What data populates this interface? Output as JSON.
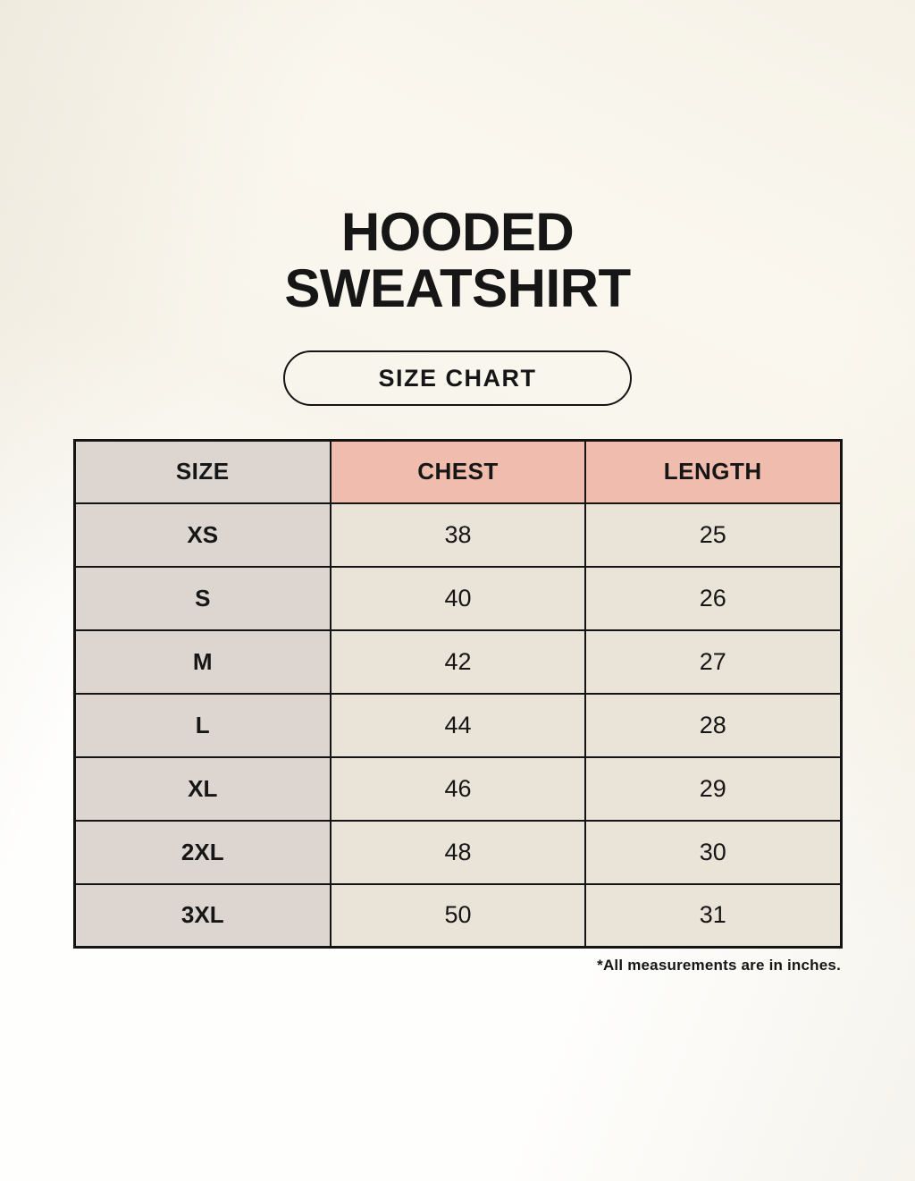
{
  "header": {
    "title_line1": "HOODED",
    "title_line2": "SWEATSHIRT",
    "badge_label": "SIZE CHART"
  },
  "table": {
    "headers": [
      "SIZE",
      "CHEST",
      "LENGTH"
    ],
    "rows": [
      [
        "XS",
        "38",
        "25"
      ],
      [
        "S",
        "40",
        "26"
      ],
      [
        "M",
        "42",
        "27"
      ],
      [
        "L",
        "44",
        "28"
      ],
      [
        "XL",
        "46",
        "29"
      ],
      [
        "2XL",
        "48",
        "30"
      ],
      [
        "3XL",
        "50",
        "31"
      ]
    ]
  },
  "footnote": "*All measurements are in inches.",
  "colors": {
    "background": "#faf7ef",
    "size_column_bg": "#ddd6d0",
    "accent_header_bg": "#efbcad",
    "data_cell_bg": "#eae3d8",
    "border": "#141414",
    "text": "#161616"
  },
  "chart_data": {
    "type": "table",
    "title": "HOODED SWEATSHIRT",
    "subtitle": "SIZE CHART",
    "columns": [
      "SIZE",
      "CHEST",
      "LENGTH"
    ],
    "rows": [
      {
        "size": "XS",
        "chest": 38,
        "length": 25
      },
      {
        "size": "S",
        "chest": 40,
        "length": 26
      },
      {
        "size": "M",
        "chest": 42,
        "length": 27
      },
      {
        "size": "L",
        "chest": 44,
        "length": 28
      },
      {
        "size": "XL",
        "chest": 46,
        "length": 29
      },
      {
        "size": "2XL",
        "chest": 48,
        "length": 30
      },
      {
        "size": "3XL",
        "chest": 50,
        "length": 31
      }
    ],
    "units": "inches",
    "note": "*All measurements are in inches.",
    "layout_hints": {
      "size_column_shaded": true,
      "accent_header_columns": [
        "CHEST",
        "LENGTH"
      ],
      "grid": true
    }
  }
}
